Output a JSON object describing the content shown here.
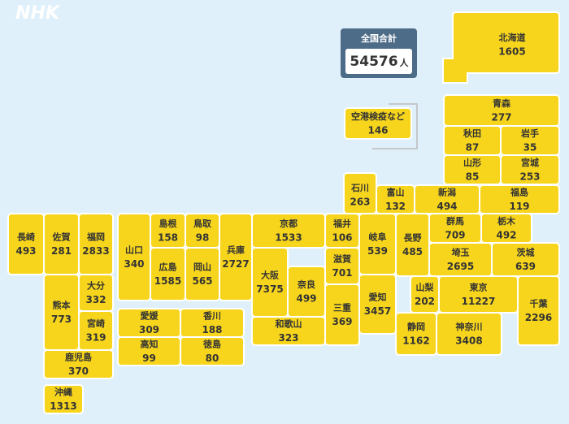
{
  "logo": "NHK",
  "total": {
    "title": "全国合計",
    "value": 54576,
    "unit": "人"
  },
  "prefectures": [
    {
      "name": "北海道",
      "count": 1605
    },
    {
      "name": "青森",
      "count": 277
    },
    {
      "name": "秋田",
      "count": 87
    },
    {
      "name": "岩手",
      "count": 35
    },
    {
      "name": "山形",
      "count": 85
    },
    {
      "name": "宮城",
      "count": 253
    },
    {
      "name": "空港検疫など",
      "count": 146
    },
    {
      "name": "石川",
      "count": 263
    },
    {
      "name": "富山",
      "count": 132
    },
    {
      "name": "新潟",
      "count": 494
    },
    {
      "name": "福島",
      "count": 119
    },
    {
      "name": "福井",
      "count": 106
    },
    {
      "name": "岐阜",
      "count": 539
    },
    {
      "name": "長野",
      "count": 485
    },
    {
      "name": "群馬",
      "count": 709
    },
    {
      "name": "栃木",
      "count": 492
    },
    {
      "name": "埼玉",
      "count": 2695
    },
    {
      "name": "茨城",
      "count": 639
    },
    {
      "name": "山梨",
      "count": 202
    },
    {
      "name": "東京",
      "count": 11227
    },
    {
      "name": "千葉",
      "count": 2296
    },
    {
      "name": "静岡",
      "count": 1162
    },
    {
      "name": "神奈川",
      "count": 3408
    },
    {
      "name": "愛知",
      "count": 3457
    },
    {
      "name": "滋賀",
      "count": 701
    },
    {
      "name": "三重",
      "count": 369
    },
    {
      "name": "京都",
      "count": 1533
    },
    {
      "name": "大阪",
      "count": 7375
    },
    {
      "name": "奈良",
      "count": 499
    },
    {
      "name": "和歌山",
      "count": 323
    },
    {
      "name": "兵庫",
      "count": 2727
    },
    {
      "name": "鳥取",
      "count": 98
    },
    {
      "name": "島根",
      "count": 158
    },
    {
      "name": "岡山",
      "count": 565
    },
    {
      "name": "広島",
      "count": 1585
    },
    {
      "name": "山口",
      "count": 340
    },
    {
      "name": "愛媛",
      "count": 309
    },
    {
      "name": "香川",
      "count": 188
    },
    {
      "name": "高知",
      "count": 99
    },
    {
      "name": "徳島",
      "count": 80
    },
    {
      "name": "福岡",
      "count": 2833
    },
    {
      "name": "佐賀",
      "count": 281
    },
    {
      "name": "長崎",
      "count": 493
    },
    {
      "name": "熊本",
      "count": 773
    },
    {
      "name": "大分",
      "count": 332
    },
    {
      "name": "宮崎",
      "count": 319
    },
    {
      "name": "鹿児島",
      "count": 370
    },
    {
      "name": "沖縄",
      "count": 1313
    }
  ]
}
